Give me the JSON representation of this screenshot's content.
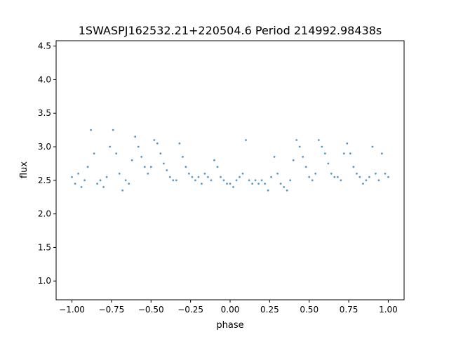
{
  "chart_data": {
    "type": "scatter",
    "title": "1SWASPJ162532.21+220504.6 Period 214992.98438s",
    "xlabel": "phase",
    "ylabel": "flux",
    "xlim": [
      -1.1,
      1.1
    ],
    "ylim": [
      0.72,
      4.58
    ],
    "grid": false,
    "legend": "none",
    "marker_color": "#1f77b4",
    "x_ticks": [
      -1.0,
      -0.75,
      -0.5,
      -0.25,
      0.0,
      0.25,
      0.5,
      0.75,
      1.0
    ],
    "x_tick_labels": [
      "−1.00",
      "−0.75",
      "−0.50",
      "−0.25",
      "0.00",
      "0.25",
      "0.50",
      "0.75",
      "1.00"
    ],
    "y_ticks": [
      1.0,
      1.5,
      2.0,
      2.5,
      3.0,
      3.5,
      4.0,
      4.5
    ],
    "y_tick_labels": [
      "1.0",
      "1.5",
      "2.0",
      "2.5",
      "3.0",
      "3.5",
      "4.0",
      "4.5"
    ],
    "x": [
      -1.0,
      -0.98,
      -0.96,
      -0.94,
      -0.92,
      -0.9,
      -0.88,
      -0.86,
      -0.84,
      -0.82,
      -0.8,
      -0.78,
      -0.76,
      -0.74,
      -0.72,
      -0.7,
      -0.68,
      -0.66,
      -0.64,
      -0.62,
      -0.6,
      -0.58,
      -0.56,
      -0.54,
      -0.52,
      -0.5,
      -0.48,
      -0.46,
      -0.44,
      -0.42,
      -0.4,
      -0.38,
      -0.36,
      -0.34,
      -0.32,
      -0.3,
      -0.28,
      -0.26,
      -0.24,
      -0.22,
      -0.2,
      -0.18,
      -0.16,
      -0.14,
      -0.12,
      -0.1,
      -0.08,
      -0.06,
      -0.04,
      -0.02,
      0.0,
      0.02,
      0.04,
      0.06,
      0.08,
      0.1,
      0.12,
      0.14,
      0.16,
      0.18,
      0.2,
      0.22,
      0.24,
      0.26,
      0.28,
      0.3,
      0.32,
      0.34,
      0.36,
      0.38,
      0.4,
      0.42,
      0.44,
      0.46,
      0.48,
      0.5,
      0.52,
      0.54,
      0.56,
      0.58,
      0.6,
      0.62,
      0.64,
      0.66,
      0.68,
      0.7,
      0.72,
      0.74,
      0.76,
      0.78,
      0.8,
      0.82,
      0.84,
      0.86,
      0.88,
      0.9,
      0.92,
      0.94,
      0.96,
      0.98,
      1.0
    ],
    "y": [
      2.55,
      2.45,
      2.6,
      2.4,
      2.5,
      2.7,
      3.25,
      2.9,
      2.45,
      2.5,
      2.4,
      2.55,
      3.0,
      3.25,
      2.9,
      2.6,
      2.35,
      2.5,
      2.45,
      2.8,
      3.15,
      3.0,
      2.85,
      2.7,
      2.6,
      2.7,
      3.1,
      3.05,
      2.9,
      2.75,
      2.65,
      2.55,
      2.5,
      2.5,
      3.05,
      2.85,
      2.7,
      2.6,
      2.55,
      2.5,
      2.55,
      2.45,
      2.6,
      2.55,
      2.5,
      2.8,
      2.7,
      2.55,
      2.5,
      2.45,
      2.45,
      2.4,
      2.5,
      2.55,
      2.6,
      3.1,
      2.5,
      2.45,
      2.5,
      2.45,
      2.5,
      2.45,
      2.35,
      2.55,
      2.85,
      2.6,
      2.45,
      2.4,
      2.35,
      2.5,
      2.8,
      3.1,
      3.0,
      2.85,
      2.7,
      2.55,
      2.5,
      2.6,
      3.1,
      3.0,
      2.9,
      2.75,
      2.6,
      2.55,
      2.55,
      2.5,
      2.9,
      3.05,
      2.9,
      2.7,
      2.6,
      2.55,
      2.45,
      2.5,
      2.55,
      3.0,
      2.6,
      2.5,
      2.9,
      2.6,
      2.55
    ]
  }
}
